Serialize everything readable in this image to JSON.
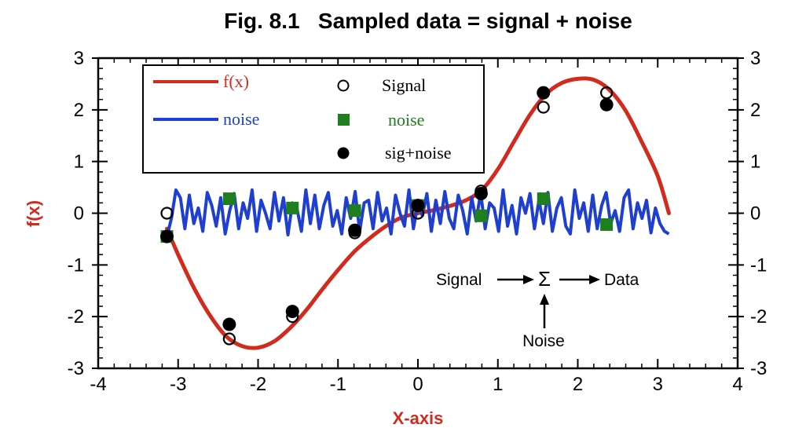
{
  "chart_data": {
    "type": "line",
    "title": "Fig. 8.1   Sampled data = signal + noise",
    "xlabel": "X-axis",
    "ylabel": "f(x)",
    "xlim": [
      -4,
      4
    ],
    "ylim": [
      -3,
      3
    ],
    "x_ticks": [
      "-4",
      "-3",
      "-2",
      "-1",
      "0",
      "1",
      "2",
      "3",
      "4"
    ],
    "y_ticks": [
      "-3",
      "-2",
      "-1",
      "0",
      "1",
      "2",
      "3"
    ],
    "y2_ticks": [
      "-3",
      "-2",
      "-1",
      "0",
      "1",
      "2",
      "3"
    ],
    "grid": false,
    "legend_position": "top-left",
    "colors": {
      "signal": "#d22b1e",
      "noise_line": "#1f3fd0",
      "noise_points": "#1d7f1d",
      "points": "#000000",
      "axis_label": "#d22b1e"
    },
    "series": [
      {
        "name": "f(x)",
        "kind": "line",
        "x": [
          -3.14,
          -3.0,
          -2.8,
          -2.6,
          -2.4,
          -2.2,
          -2.0,
          -1.8,
          -1.6,
          -1.4,
          -1.2,
          -1.0,
          -0.8,
          -0.6,
          -0.4,
          -0.2,
          0.0,
          0.2,
          0.4,
          0.6,
          0.8,
          1.0,
          1.2,
          1.4,
          1.6,
          1.8,
          2.0,
          2.2,
          2.4,
          2.6,
          2.8,
          3.0,
          3.14
        ],
        "y": [
          -0.3,
          -0.8,
          -1.45,
          -1.98,
          -2.38,
          -2.57,
          -2.6,
          -2.48,
          -2.22,
          -1.88,
          -1.48,
          -1.1,
          -0.75,
          -0.48,
          -0.25,
          -0.08,
          0.0,
          0.06,
          0.14,
          0.25,
          0.45,
          0.85,
          1.38,
          1.9,
          2.3,
          2.52,
          2.6,
          2.58,
          2.38,
          1.98,
          1.38,
          0.72,
          0.0
        ]
      },
      {
        "name": "noise",
        "kind": "line",
        "x_start": -3.14,
        "x_end": 3.14,
        "y": [
          -0.45,
          -0.1,
          0.45,
          0.3,
          -0.3,
          0.35,
          -0.2,
          0.1,
          -0.35,
          0.4,
          0.15,
          -0.25,
          0.3,
          -0.4,
          0.05,
          0.38,
          -0.3,
          0.2,
          -0.1,
          0.45,
          -0.35,
          0.25,
          0.0,
          -0.3,
          0.4,
          -0.15,
          0.3,
          -0.42,
          0.2,
          0.1,
          -0.35,
          0.45,
          -0.2,
          0.35,
          -0.3,
          0.15,
          0.4,
          -0.25,
          0.05,
          -0.4,
          0.3,
          -0.1,
          0.42,
          -0.35,
          0.2,
          0.25,
          -0.3,
          0.4,
          -0.15,
          0.1,
          -0.4,
          0.35,
          0.0,
          -0.25,
          0.45,
          -0.3,
          0.2,
          -0.05,
          0.38,
          -0.35,
          0.25,
          -0.2,
          0.42,
          -0.1,
          -0.3,
          0.35,
          0.05,
          -0.4,
          0.3,
          -0.15,
          0.4,
          -0.3,
          0.2,
          0.1,
          -0.35,
          0.45,
          -0.25,
          0.15,
          -0.4,
          0.3,
          0.0,
          0.38,
          -0.3,
          0.25,
          -0.2,
          0.4,
          -0.35,
          0.1,
          0.3,
          -0.25,
          -0.4,
          0.45,
          -0.1,
          0.2,
          -0.35,
          0.35,
          -0.3,
          0.15,
          0.4,
          -0.2,
          0.05,
          -0.35,
          0.3,
          0.45,
          -0.3,
          0.2,
          -0.1,
          0.25,
          -0.38,
          0.1,
          -0.2,
          -0.35,
          -0.4
        ]
      },
      {
        "name": "Signal",
        "kind": "points",
        "marker": "open-circle",
        "x": [
          -3.14,
          -2.36,
          -1.57,
          -0.79,
          0.0,
          0.79,
          1.57,
          2.36
        ],
        "y": [
          0.0,
          -2.43,
          -2.0,
          -0.38,
          0.0,
          0.43,
          2.05,
          2.33
        ]
      },
      {
        "name": "noise",
        "kind": "points",
        "marker": "filled-square",
        "x": [
          -3.14,
          -2.36,
          -1.57,
          -0.79,
          0.0,
          0.79,
          1.57,
          2.36
        ],
        "y": [
          -0.45,
          0.28,
          0.1,
          0.05,
          0.15,
          -0.05,
          0.28,
          -0.22
        ]
      },
      {
        "name": "sig+noise",
        "kind": "points",
        "marker": "filled-circle",
        "x": [
          -3.14,
          -2.36,
          -1.57,
          -0.79,
          0.0,
          0.79,
          1.57,
          2.36
        ],
        "y": [
          -0.45,
          -2.15,
          -1.9,
          -0.33,
          0.15,
          0.38,
          2.33,
          2.1
        ]
      }
    ],
    "legend": [
      {
        "symbol": "line",
        "label": "f(x)"
      },
      {
        "symbol": "line",
        "label": "noise"
      },
      {
        "symbol": "open-circle",
        "label": "Signal"
      },
      {
        "symbol": "filled-square",
        "label": "noise"
      },
      {
        "symbol": "filled-circle",
        "label": "sig+noise"
      }
    ],
    "annotation": {
      "input": "Signal",
      "operator": "Σ",
      "output": "Data",
      "added": "Noise"
    }
  }
}
